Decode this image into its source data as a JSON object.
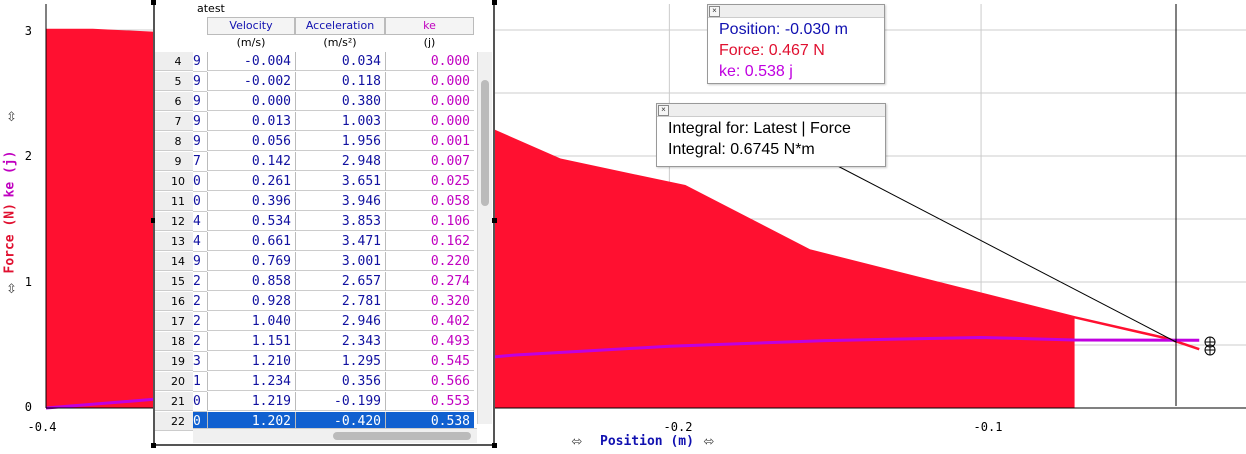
{
  "chart_data": {
    "type": "area",
    "xlim": [
      -0.4,
      -0.015
    ],
    "ylim": [
      0,
      3.1
    ],
    "x_ticks": [
      "-0.4",
      "-0.2",
      "-0.1"
    ],
    "y_ticks": [
      "0",
      "1",
      "2",
      "3"
    ],
    "xlabel": "Position (m)",
    "ylabel_force": "Force (N)",
    "ylabel_ke": "ke (j)",
    "series": [
      {
        "name": "Force",
        "color": "#ff1030",
        "x": [
          -0.4,
          -0.385,
          -0.36,
          -0.3,
          -0.27,
          -0.235,
          -0.195,
          -0.155,
          -0.07,
          -0.04,
          -0.03
        ],
        "y": [
          3.0,
          3.0,
          2.97,
          2.65,
          2.35,
          1.97,
          1.76,
          1.25,
          0.72,
          0.55,
          0.467
        ]
      },
      {
        "name": "ke",
        "color": "#c000e0",
        "x": [
          -0.4,
          -0.36,
          -0.3,
          -0.25,
          -0.2,
          -0.15,
          -0.1,
          -0.07,
          -0.03
        ],
        "y": [
          0.0,
          0.08,
          0.3,
          0.42,
          0.49,
          0.535,
          0.56,
          0.54,
          0.538
        ]
      }
    ],
    "integral_region": {
      "from": -0.4,
      "to": -0.07
    }
  },
  "colors": {
    "force": "#ff1030",
    "ke": "#c000e0",
    "position": "#1010b0",
    "selection": "#1060d0"
  },
  "table": {
    "title": "atest",
    "headers": {
      "velocity": "Velocity",
      "acceleration": "Acceleration",
      "ke": "ke"
    },
    "units": {
      "velocity": "(m/s)",
      "acceleration": "(m/s²)",
      "ke": "(j)"
    },
    "rows": [
      {
        "n": "4",
        "p": "9",
        "v": "-0.004",
        "a": "0.034",
        "k": "0.000"
      },
      {
        "n": "5",
        "p": "9",
        "v": "-0.002",
        "a": "0.118",
        "k": "0.000"
      },
      {
        "n": "6",
        "p": "9",
        "v": "0.000",
        "a": "0.380",
        "k": "0.000"
      },
      {
        "n": "7",
        "p": "9",
        "v": "0.013",
        "a": "1.003",
        "k": "0.000"
      },
      {
        "n": "8",
        "p": "9",
        "v": "0.056",
        "a": "1.956",
        "k": "0.001"
      },
      {
        "n": "9",
        "p": "7",
        "v": "0.142",
        "a": "2.948",
        "k": "0.007"
      },
      {
        "n": "10",
        "p": "0",
        "v": "0.261",
        "a": "3.651",
        "k": "0.025"
      },
      {
        "n": "11",
        "p": "0",
        "v": "0.396",
        "a": "3.946",
        "k": "0.058"
      },
      {
        "n": "12",
        "p": "4",
        "v": "0.534",
        "a": "3.853",
        "k": "0.106"
      },
      {
        "n": "13",
        "p": "4",
        "v": "0.661",
        "a": "3.471",
        "k": "0.162"
      },
      {
        "n": "14",
        "p": "9",
        "v": "0.769",
        "a": "3.001",
        "k": "0.220"
      },
      {
        "n": "15",
        "p": "2",
        "v": "0.858",
        "a": "2.657",
        "k": "0.274"
      },
      {
        "n": "16",
        "p": "2",
        "v": "0.928",
        "a": "2.781",
        "k": "0.320"
      },
      {
        "n": "17",
        "p": "2",
        "v": "1.040",
        "a": "2.946",
        "k": "0.402"
      },
      {
        "n": "18",
        "p": "2",
        "v": "1.151",
        "a": "2.343",
        "k": "0.493"
      },
      {
        "n": "19",
        "p": "3",
        "v": "1.210",
        "a": "1.295",
        "k": "0.545"
      },
      {
        "n": "20",
        "p": "1",
        "v": "1.234",
        "a": "0.356",
        "k": "0.566"
      },
      {
        "n": "21",
        "p": "0",
        "v": "1.219",
        "a": "-0.199",
        "k": "0.553"
      },
      {
        "n": "22",
        "p": "0",
        "v": "1.202",
        "a": "-0.420",
        "k": "0.538"
      }
    ],
    "selected_row": "22"
  },
  "examine": {
    "position": "Position: -0.030 m",
    "force": "Force: 0.467 N",
    "ke": "ke: 0.538 j"
  },
  "integral": {
    "line1": "Integral for: Latest | Force",
    "line2": "Integral: 0.6745 N*m"
  },
  "icons": {
    "close": "×",
    "axis_arrow": "⇳"
  }
}
